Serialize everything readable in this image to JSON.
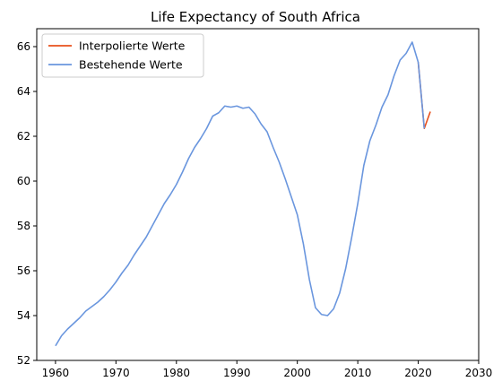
{
  "chart_data": {
    "type": "line",
    "title": "Life Expectancy of South Africa",
    "xlabel": "",
    "ylabel": "",
    "xlim": [
      1956.9,
      2030
    ],
    "ylim": [
      52,
      66.8
    ],
    "x_ticks": [
      1960,
      1970,
      1980,
      1990,
      2000,
      2010,
      2020,
      2030
    ],
    "y_ticks": [
      52,
      54,
      56,
      58,
      60,
      62,
      64,
      66
    ],
    "grid": false,
    "legend": "top-left",
    "series": [
      {
        "name": "Interpolierte Werte",
        "color": "#e8501c",
        "x": [
          2020,
          2021,
          2022
        ],
        "y": [
          65.3,
          62.35,
          63.1
        ]
      },
      {
        "name": "Bestehende Werte",
        "color": "#6a96de",
        "x": [
          1960,
          1961,
          1962,
          1963,
          1964,
          1965,
          1966,
          1967,
          1968,
          1969,
          1970,
          1971,
          1972,
          1973,
          1974,
          1975,
          1976,
          1977,
          1978,
          1979,
          1980,
          1981,
          1982,
          1983,
          1984,
          1985,
          1986,
          1987,
          1988,
          1989,
          1990,
          1991,
          1992,
          1993,
          1994,
          1995,
          1996,
          1997,
          1998,
          1999,
          2000,
          2001,
          2002,
          2003,
          2004,
          2005,
          2006,
          2007,
          2008,
          2009,
          2010,
          2011,
          2012,
          2013,
          2014,
          2015,
          2016,
          2017,
          2018,
          2019,
          2020,
          2021
        ],
        "y": [
          52.65,
          53.1,
          53.4,
          53.65,
          53.9,
          54.2,
          54.4,
          54.6,
          54.85,
          55.15,
          55.5,
          55.9,
          56.25,
          56.7,
          57.1,
          57.5,
          58.0,
          58.5,
          59.0,
          59.4,
          59.85,
          60.4,
          61.0,
          61.5,
          61.9,
          62.35,
          62.9,
          63.05,
          63.35,
          63.3,
          63.35,
          63.25,
          63.3,
          63.0,
          62.55,
          62.2,
          61.5,
          60.85,
          60.1,
          59.3,
          58.5,
          57.2,
          55.6,
          54.35,
          54.05,
          54.0,
          54.3,
          55.0,
          56.1,
          57.5,
          59.0,
          60.7,
          61.8,
          62.5,
          63.3,
          63.85,
          64.7,
          65.4,
          65.7,
          66.2,
          65.3,
          62.35
        ]
      }
    ]
  }
}
